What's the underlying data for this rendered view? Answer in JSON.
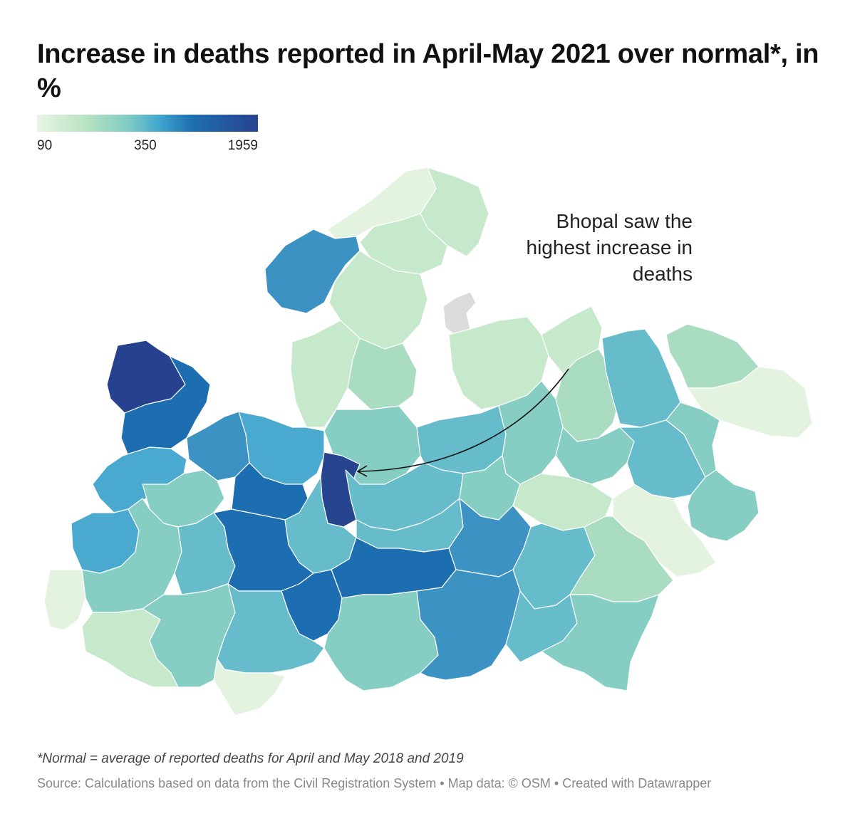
{
  "title": "Increase in deaths reported in April-May 2021 over normal*, in %",
  "legend": {
    "min_label": "90",
    "mid_label": "350",
    "max_label": "1959",
    "colors": [
      "#e8f5e4",
      "#b9e3c2",
      "#7fcac4",
      "#41a7cf",
      "#1e6fb0",
      "#26428f"
    ]
  },
  "annotation": {
    "text": "Bhopal saw the highest increase in deaths",
    "target": "Bhopal"
  },
  "footnote": "*Normal = average of reported deaths for April and May 2018 and 2019",
  "source": "Source: Calculations based on data from the Civil Registration System • Map data: © OSM • Created with Datawrapper",
  "colors": {
    "very_light": "#e3f3e0",
    "light_green": "#c6e9cc",
    "mint": "#a9dcc0",
    "teal_light": "#86cdc4",
    "teal": "#66bccb",
    "blue_light": "#4aa9cf",
    "blue": "#3c92c3",
    "blue_dark": "#1d6eb1",
    "navy": "#27448f",
    "no_data": "#dcdcdc"
  }
}
